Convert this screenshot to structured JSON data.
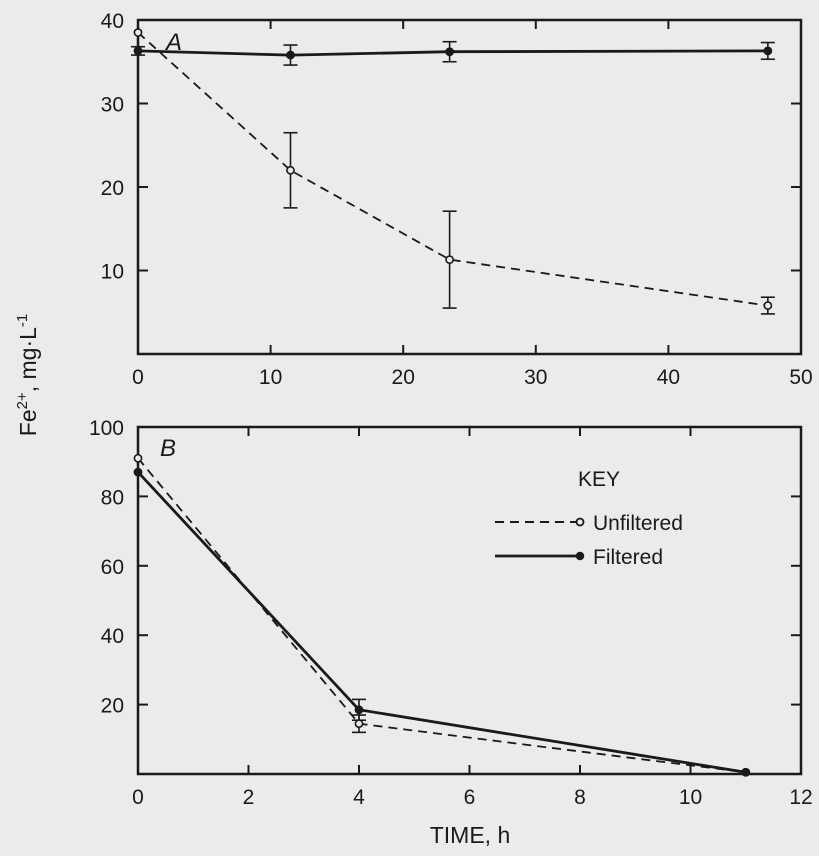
{
  "figure": {
    "ylabel_base": "Fe",
    "ylabel_sup1": "2+",
    "ylabel_mid": ", mg·L",
    "ylabel_sup2": "-1",
    "xlabel": "TIME, h"
  },
  "colors": {
    "ink": "#1a1a1a",
    "background": "#ebebeb"
  },
  "legend": {
    "title": "KEY",
    "entries": [
      {
        "series": "Unfiltered",
        "style": "dashed",
        "marker": "open-circle"
      },
      {
        "series": "Filtered",
        "style": "solid",
        "marker": "filled-circle"
      }
    ]
  },
  "chart_data": [
    {
      "type": "line",
      "panel": "A",
      "xlim": [
        0,
        50
      ],
      "ylim": [
        0,
        40
      ],
      "xticks": [
        "0",
        "10",
        "20",
        "30",
        "40",
        "50"
      ],
      "yticks": [
        "10",
        "20",
        "30",
        "40"
      ],
      "series": [
        {
          "name": "Unfiltered",
          "style": "dashed",
          "marker": "open-circle",
          "points": [
            {
              "x": 0,
              "y": 38.5,
              "err": 0
            },
            {
              "x": 11.5,
              "y": 22,
              "err": 4.5
            },
            {
              "x": 23.5,
              "y": 11.3,
              "err": 5.8
            },
            {
              "x": 47.5,
              "y": 5.8,
              "err": 1
            }
          ]
        },
        {
          "name": "Filtered",
          "style": "solid",
          "marker": "filled-circle",
          "points": [
            {
              "x": 0,
              "y": 36.3,
              "err": 0.5
            },
            {
              "x": 11.5,
              "y": 35.8,
              "err": 1.2
            },
            {
              "x": 23.5,
              "y": 36.2,
              "err": 1.2
            },
            {
              "x": 47.5,
              "y": 36.3,
              "err": 1
            }
          ]
        }
      ]
    },
    {
      "type": "line",
      "panel": "B",
      "xlim": [
        0,
        12
      ],
      "ylim": [
        0,
        100
      ],
      "xticks": [
        "0",
        "2",
        "4",
        "6",
        "8",
        "10",
        "12"
      ],
      "yticks": [
        "20",
        "40",
        "60",
        "80",
        "100"
      ],
      "series": [
        {
          "name": "Unfiltered",
          "style": "dashed",
          "marker": "open-circle",
          "points": [
            {
              "x": 0,
              "y": 91,
              "err": 0
            },
            {
              "x": 4,
              "y": 14.5,
              "err": 2.5
            },
            {
              "x": 11,
              "y": 0.5,
              "err": 0
            }
          ]
        },
        {
          "name": "Filtered",
          "style": "solid",
          "marker": "filled-circle",
          "points": [
            {
              "x": 0,
              "y": 87,
              "err": 0
            },
            {
              "x": 4,
              "y": 18.5,
              "err": 3
            },
            {
              "x": 11,
              "y": 0.5,
              "err": 0
            }
          ]
        }
      ]
    }
  ]
}
